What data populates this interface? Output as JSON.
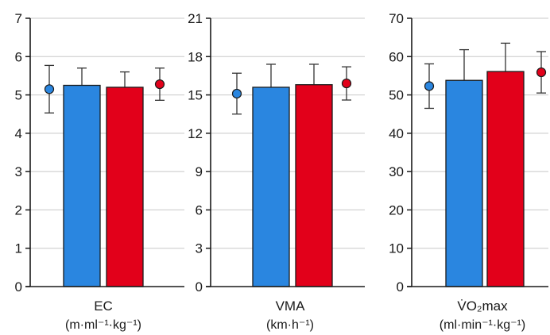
{
  "colors": {
    "blue": "#2a86e0",
    "red": "#e2001a",
    "grid": "#c8c8c8",
    "axis": "#1a1a1a",
    "error": "#333333"
  },
  "chart_data": [
    {
      "type": "bar",
      "xlabel": "EC",
      "unit": "(m·ml⁻¹·kg⁻¹)",
      "ylim": [
        0,
        7
      ],
      "yticks": [
        "0",
        "1",
        "2",
        "3",
        "4",
        "5",
        "6",
        "7"
      ],
      "grid": true,
      "series": [
        {
          "color": "blue",
          "bar": 5.25,
          "bar_sd": 0.45,
          "dot": 5.15,
          "dot_sd": 0.62
        },
        {
          "color": "red",
          "bar": 5.2,
          "bar_sd": 0.4,
          "dot": 5.28,
          "dot_sd": 0.42
        }
      ]
    },
    {
      "type": "bar",
      "xlabel": "VMA",
      "unit": "(km·h⁻¹)",
      "ylim": [
        0,
        21
      ],
      "yticks": [
        "0",
        "3",
        "6",
        "9",
        "12",
        "15",
        "18",
        "21"
      ],
      "grid": true,
      "series": [
        {
          "color": "blue",
          "bar": 15.6,
          "bar_sd": 1.8,
          "dot": 15.1,
          "dot_sd": 1.6
        },
        {
          "color": "red",
          "bar": 15.8,
          "bar_sd": 1.6,
          "dot": 15.9,
          "dot_sd": 1.3
        }
      ]
    },
    {
      "type": "bar",
      "xlabel": "V̇O₂max",
      "unit": "(ml·min⁻¹·kg⁻¹)",
      "ylim": [
        0,
        70
      ],
      "yticks": [
        "0",
        "10",
        "20",
        "30",
        "40",
        "50",
        "60",
        "70"
      ],
      "grid": true,
      "series": [
        {
          "color": "blue",
          "bar": 53.8,
          "bar_sd": 8.0,
          "dot": 52.3,
          "dot_sd": 5.8
        },
        {
          "color": "red",
          "bar": 56.1,
          "bar_sd": 7.4,
          "dot": 55.9,
          "dot_sd": 5.4
        }
      ]
    }
  ]
}
